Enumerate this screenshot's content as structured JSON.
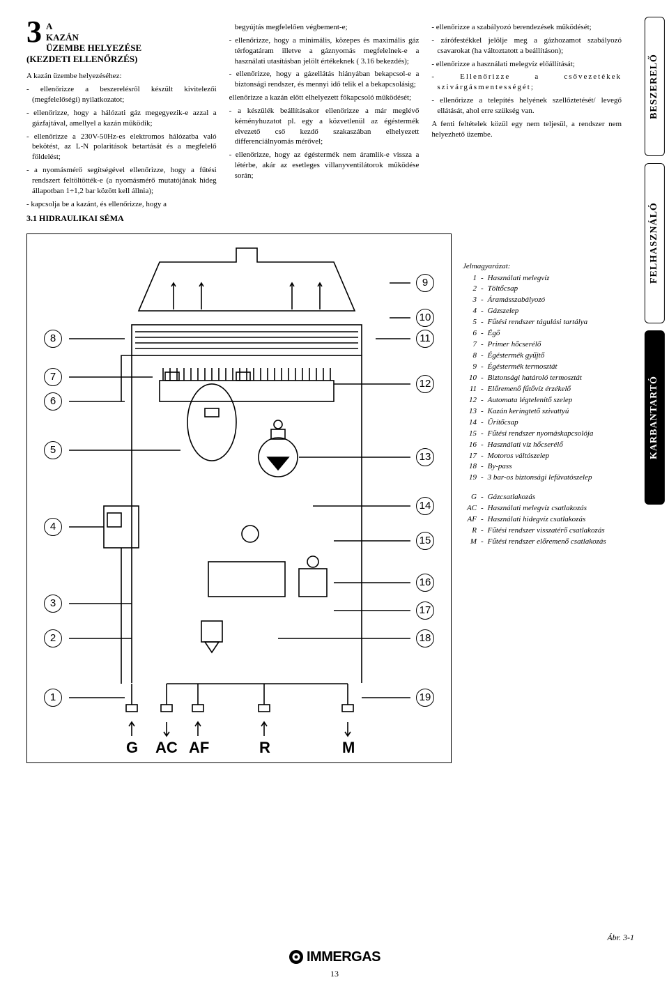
{
  "chapter": {
    "num": "3",
    "titleA": "A",
    "titleB": "KAZÁN",
    "titleC": "ÜZEMBE HELYEZÉSE",
    "titleD": "(KEZDETI ELLENŐRZÉS)"
  },
  "col1": {
    "intro": "A kazán üzembe helyezéséhez:",
    "b1": "- ellenőrizze a beszerelésről készült kivitelezői (megfelelőségi) nyilatkozatot;",
    "b2": "- ellenőrizze, hogy a hálózati gáz megegyezik-e azzal a gázfajtával, amellyel a kazán működik;",
    "b3": "- ellenőrizze a 230V-50Hz-es elektromos hálózatba való bekötést, az L-N polaritások betartását és a megfelelő földelést;",
    "b4": "- a nyomásmérő segítségével ellenőrizze, hogy a fűtési rendszert feltöltötték-e (a nyomásmérő mutatójának hideg állapotban 1÷1,2 bar között kell állnia);",
    "b5": "- kapcsolja be a kazánt, és ellenőrizze, hogy a"
  },
  "col2": {
    "p0": "begyújtás megfelelően végbement-e;",
    "b1": "- ellenőrizze, hogy a minimális, közepes és maximális gáz térfogatáram illetve a gáznyomás megfelelnek-e a használati utasításban jelölt értékeknek ( 3.16 bekezdés);",
    "b2": "- ellenőrizze, hogy a gázellátás hiányában bekapcsol-e a biztonsági rendszer, és mennyi idő telik el a bekapcsolásig;",
    "p1": "ellenőrizze a kazán előtt elhelyezett főkapcsoló működését;",
    "b3": "- a készülék beállításakor ellenőrizze a már meglévő kéményhuzatot pl. egy a közvetlenül az égéstermék elvezető cső kezdő szakaszában elhelyezett differenciálnyomás mérővel;",
    "b4": "- ellenőrizze, hogy az égéstermék nem áramlik-e vissza a létérbe, akár az esetleges villanyventilátorok működése során;"
  },
  "col3": {
    "b1": "- ellenőrizze a szabályozó berendezések működését;",
    "b2": "- zárófestékkel jelölje meg a gázhozamot szabályozó csavarokat (ha változtatott a beállításon);",
    "b3": "- ellenőrizze a használati melegvíz előállítását;",
    "b4": "- Ellenőrizze a csővezetékek szivárgásmentességét;",
    "b5": "- ellenőrizze a telepítés helyének szellőztetését/ levegő ellátását, ahol erre szükség van.",
    "p1": "A fenti feltételek közül egy nem teljesül, a rendszer nem helyezhető üzembe."
  },
  "section31": "3.1 HIDRAULIKAI SÉMA",
  "tabs": {
    "t1": "BESZERELŐ",
    "t2": "FELHASZNÁLÓ",
    "t3": "KARBANTARTÓ"
  },
  "diagram": {
    "left": [
      "8",
      "7",
      "6",
      "5",
      "4",
      "3",
      "2",
      "1"
    ],
    "right": [
      "9",
      "10",
      "11",
      "12",
      "13",
      "14",
      "15",
      "16",
      "17",
      "18",
      "19"
    ],
    "bottom": {
      "G": "G",
      "AC": "AC",
      "AF": "AF",
      "R": "R",
      "M": "M"
    }
  },
  "legend": {
    "title": "Jelmagyarázat:",
    "items": [
      {
        "n": "1",
        "t": "Használati melegvíz"
      },
      {
        "n": "2",
        "t": "Töltőcsap"
      },
      {
        "n": "3",
        "t": "Áramásszabályozó"
      },
      {
        "n": "4",
        "t": "Gázszelep"
      },
      {
        "n": "5",
        "t": "Fűtési rendszer tágulási tartálya"
      },
      {
        "n": "6",
        "t": "Égő"
      },
      {
        "n": "7",
        "t": "Primer hőcserélő"
      },
      {
        "n": "8",
        "t": " Égéstermék gyűjtő"
      },
      {
        "n": "9",
        "t": "Égéstermék termosztát"
      },
      {
        "n": "10",
        "t": "Biztonsági határoló termosztát"
      },
      {
        "n": "11",
        "t": "Előremenő fűtővíz érzékelő"
      },
      {
        "n": "12",
        "t": "Automata légtelenítő szelep"
      },
      {
        "n": "13",
        "t": "Kazán keringtető szivattyú"
      },
      {
        "n": "14",
        "t": "Ürítőcsap"
      },
      {
        "n": "15",
        "t": "Fűtési rendszer nyomáskapcsolója"
      },
      {
        "n": "16",
        "t": "Használati víz hőcserélő"
      },
      {
        "n": "17",
        "t": "Motoros váltószelep"
      },
      {
        "n": "18",
        "t": "By-pass"
      },
      {
        "n": "19",
        "t": "3 bar-os biztonsági lefúvatószelep"
      }
    ],
    "conn": [
      {
        "n": "G",
        "t": "Gázcsatlakozás"
      },
      {
        "n": "AC",
        "t": "Használati melegvíz csatlakozás"
      },
      {
        "n": "AF",
        "t": "Használati hidegvíz csatlakozás"
      },
      {
        "n": "R",
        "t": "Fűtési rendszer visszatérő csatlakozás"
      },
      {
        "n": "M",
        "t": "Fűtési rendszer előremenő csatlakozás"
      }
    ]
  },
  "figCaption": "Ábr. 3-1",
  "footer": {
    "brand": "IMMERGAS",
    "page": "13"
  }
}
